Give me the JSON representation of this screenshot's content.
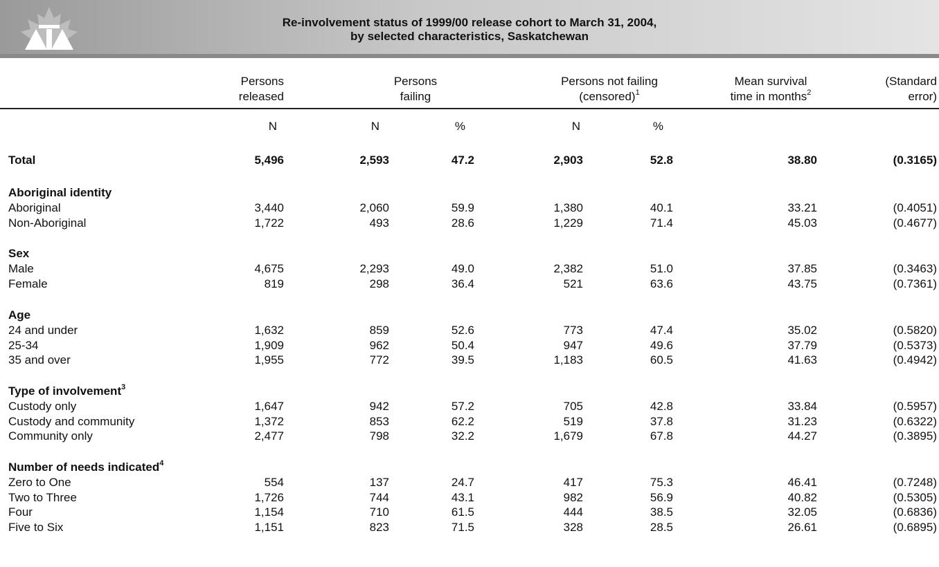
{
  "header": {
    "title": [
      "Re-involvement status of 1999/00 release cohort to March 31, 2004,",
      "by selected characteristics, Saskatchewan"
    ]
  },
  "columns": [
    {
      "lines": [
        "Persons",
        "released"
      ]
    },
    {
      "lines": [
        "Persons",
        "failing"
      ]
    },
    {
      "lines": [
        "Persons not failing",
        "(censored)"
      ],
      "note": "1"
    },
    {
      "lines": [
        "Mean survival",
        "time in months"
      ],
      "note": "2"
    },
    {
      "lines": [
        "(Standard",
        "error)"
      ]
    }
  ],
  "units": [
    "N",
    "N",
    "%",
    "N",
    "%"
  ],
  "total": {
    "label": "Total",
    "cells": [
      "5,496",
      "2,593",
      "47.2",
      "2,903",
      "52.8",
      "38.80",
      "(0.3165)"
    ]
  },
  "groups": [
    {
      "heading": "Aboriginal identity",
      "rows": [
        {
          "label": "Aboriginal",
          "cells": [
            "3,440",
            "2,060",
            "59.9",
            "1,380",
            "40.1",
            "33.21",
            "(0.4051)"
          ]
        },
        {
          "label": "Non-Aboriginal",
          "cells": [
            "1,722",
            "493",
            "28.6",
            "1,229",
            "71.4",
            "45.03",
            "(0.4677)"
          ]
        }
      ]
    },
    {
      "heading": "Sex",
      "rows": [
        {
          "label": "Male",
          "cells": [
            "4,675",
            "2,293",
            "49.0",
            "2,382",
            "51.0",
            "37.85",
            "(0.3463)"
          ]
        },
        {
          "label": "Female",
          "cells": [
            "819",
            "298",
            "36.4",
            "521",
            "63.6",
            "43.75",
            "(0.7361)"
          ]
        }
      ]
    },
    {
      "heading": "Age",
      "rows": [
        {
          "label": "24 and under",
          "cells": [
            "1,632",
            "859",
            "52.6",
            "773",
            "47.4",
            "35.02",
            "(0.5820)"
          ]
        },
        {
          "label": "25-34",
          "cells": [
            "1,909",
            "962",
            "50.4",
            "947",
            "49.6",
            "37.79",
            "(0.5373)"
          ]
        },
        {
          "label": "35 and over",
          "cells": [
            "1,955",
            "772",
            "39.5",
            "1,183",
            "60.5",
            "41.63",
            "(0.4942)"
          ]
        }
      ]
    },
    {
      "heading": "Type of involvement",
      "note": "3",
      "rows": [
        {
          "label": "Custody only",
          "cells": [
            "1,647",
            "942",
            "57.2",
            "705",
            "42.8",
            "33.84",
            "(0.5957)"
          ]
        },
        {
          "label": "Custody and community",
          "cells": [
            "1,372",
            "853",
            "62.2",
            "519",
            "37.8",
            "31.23",
            "(0.6322)"
          ]
        },
        {
          "label": "Community only",
          "cells": [
            "2,477",
            "798",
            "32.2",
            "1,679",
            "67.8",
            "44.27",
            "(0.3895)"
          ]
        }
      ]
    },
    {
      "heading": "Number of needs indicated",
      "note": "4",
      "rows": [
        {
          "label": "Zero to One",
          "cells": [
            "554",
            "137",
            "24.7",
            "417",
            "75.3",
            "46.41",
            "(0.7248)"
          ]
        },
        {
          "label": "Two to Three",
          "cells": [
            "1,726",
            "744",
            "43.1",
            "982",
            "56.9",
            "40.82",
            "(0.5305)"
          ]
        },
        {
          "label": "Four",
          "cells": [
            "1,154",
            "710",
            "61.5",
            "444",
            "38.5",
            "32.05",
            "(0.6836)"
          ]
        },
        {
          "label": "Five to Six",
          "cells": [
            "1,151",
            "823",
            "71.5",
            "328",
            "28.5",
            "26.61",
            "(0.6895)"
          ]
        }
      ]
    }
  ]
}
